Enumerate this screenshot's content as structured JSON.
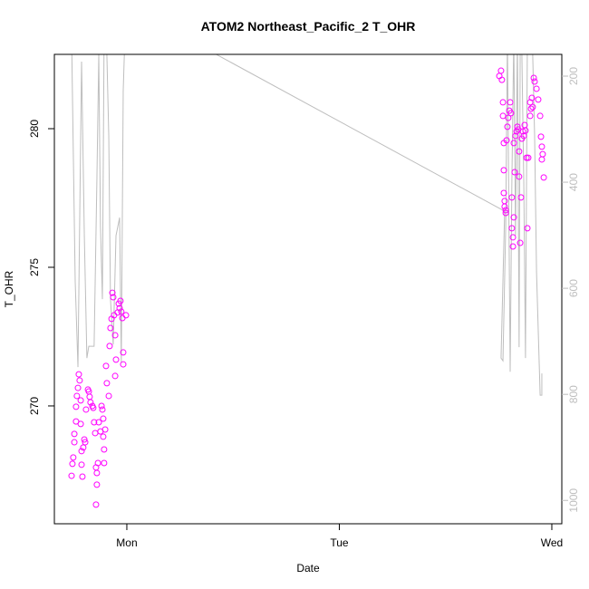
{
  "chart_data": {
    "type": "scatter",
    "title": "ATOM2 Northeast_Pacific_2 T_OHR",
    "xlabel": "Date",
    "ylabel": "T_OHR",
    "xlim": [
      -0.341,
      2.047
    ],
    "xticks": [
      {
        "value": 0,
        "label": "Mon"
      },
      {
        "value": 1,
        "label": "Tue"
      },
      {
        "value": 2,
        "label": "Wed"
      }
    ],
    "ylim": [
      265.75,
      282.68
    ],
    "yticks": [
      270,
      275,
      280
    ],
    "y2lim": [
      1044,
      159
    ],
    "y2ticks": [
      200,
      400,
      600,
      800,
      1000
    ],
    "y2color": "#bebebe",
    "series": [
      {
        "kind": "points",
        "color": "#ff00ff",
        "x": [
          -0.26,
          -0.256,
          -0.252,
          -0.247,
          -0.247,
          -0.239,
          -0.239,
          -0.235,
          -0.23,
          -0.226,
          -0.222,
          -0.217,
          -0.217,
          -0.213,
          -0.213,
          -0.209,
          -0.205,
          -0.2,
          -0.196,
          -0.192,
          -0.183,
          -0.179,
          -0.175,
          -0.171,
          -0.162,
          -0.158,
          -0.154,
          -0.149,
          -0.145,
          -0.145,
          -0.141,
          -0.141,
          -0.136,
          -0.132,
          -0.124,
          -0.119,
          -0.115,
          -0.111,
          -0.111,
          -0.107,
          -0.107,
          -0.102,
          -0.098,
          -0.094,
          -0.085,
          -0.081,
          -0.077,
          -0.072,
          -0.068,
          -0.064,
          -0.06,
          -0.055,
          -0.055,
          -0.051,
          -0.043,
          -0.038,
          -0.034,
          -0.03,
          -0.026,
          -0.021,
          -0.017,
          -0.017,
          -0.004,
          1.753,
          1.761,
          1.765,
          1.77,
          1.77,
          1.774,
          1.774,
          1.774,
          1.778,
          1.778,
          1.783,
          1.783,
          1.787,
          1.791,
          1.795,
          1.8,
          1.804,
          1.808,
          1.812,
          1.812,
          1.817,
          1.817,
          1.821,
          1.821,
          1.825,
          1.829,
          1.834,
          1.838,
          1.842,
          1.846,
          1.846,
          1.851,
          1.855,
          1.859,
          1.864,
          1.868,
          1.872,
          1.876,
          1.881,
          1.885,
          1.889,
          1.898,
          1.898,
          1.902,
          1.906,
          1.91,
          1.915,
          1.919,
          1.928,
          1.936,
          1.945,
          1.949,
          1.953,
          1.953,
          1.957,
          1.962
        ],
        "values": [
          267.48,
          267.91,
          268.14,
          268.69,
          268.99,
          269.44,
          269.97,
          270.36,
          270.65,
          271.14,
          270.92,
          270.2,
          269.35,
          268.37,
          267.88,
          267.45,
          268.5,
          268.79,
          268.69,
          269.87,
          270.59,
          270.52,
          270.33,
          270.13,
          270,
          269.93,
          269.41,
          269.02,
          267.78,
          266.44,
          267.58,
          267.16,
          267.94,
          269.41,
          269.08,
          270,
          269.87,
          269.54,
          268.89,
          268.43,
          267.94,
          269.15,
          271.44,
          270.82,
          270.36,
          272.16,
          272.81,
          273.14,
          274.08,
          273.92,
          273.27,
          272.55,
          271.08,
          271.67,
          273.37,
          273.69,
          273.53,
          273.79,
          273.4,
          273.17,
          271.5,
          271.93,
          273.27,
          281.9,
          282.09,
          281.76,
          280.95,
          280.46,
          279.48,
          278.5,
          277.68,
          277.39,
          277.19,
          276.96,
          277.06,
          279.58,
          280.07,
          280.39,
          280.65,
          280.95,
          280.56,
          277.52,
          276.41,
          276.08,
          275.75,
          276.8,
          279.48,
          278.43,
          279.74,
          279.9,
          280.07,
          279.97,
          279.18,
          278.27,
          275.88,
          277.52,
          279.64,
          279.9,
          279.74,
          280.13,
          279.93,
          278.95,
          276.41,
          278.95,
          280.46,
          280.95,
          280.72,
          281.11,
          280.78,
          281.83,
          281.7,
          281.44,
          281.05,
          280.46,
          279.71,
          279.35,
          278.89,
          279.08,
          278.24
        ]
      },
      {
        "kind": "line",
        "color": "#bebebe",
        "axis": "y2",
        "x": [
          -0.26,
          -0.243,
          -0.23,
          -0.213,
          -0.2,
          -0.188,
          -0.179,
          -0.154,
          -0.141,
          -0.132,
          -0.124,
          -0.115,
          -0.107,
          -0.094,
          -0.085,
          -0.077,
          -0.064,
          -0.051,
          -0.034,
          -0.026,
          -0.017,
          -0.009,
          0.405,
          1.778,
          1.761,
          1.77,
          1.783,
          1.791,
          1.804,
          1.812,
          1.821,
          1.829,
          1.838,
          1.846,
          1.851,
          1.859,
          1.868,
          1.876,
          1.885,
          1.898,
          1.91,
          1.919,
          1.928,
          1.945,
          1.953,
          1.953
        ],
        "values": [
          124.8,
          586.3,
          748.7,
          172.6,
          500.9,
          731.6,
          709.4,
          709.4,
          398.3,
          159,
          483.8,
          620.5,
          124.8,
          159,
          312.8,
          620.5,
          706,
          500.9,
          466.7,
          740.2,
          227.4,
          124.8,
          155.6,
          454.7,
          731.6,
          736.8,
          483.8,
          124.8,
          757.3,
          398.3,
          124.8,
          500.9,
          124.8,
          711.1,
          159,
          159,
          398.3,
          731.6,
          124.8,
          124.8,
          159,
          312.8,
          569.2,
          801.7,
          801.7,
          760.7
        ]
      }
    ]
  }
}
